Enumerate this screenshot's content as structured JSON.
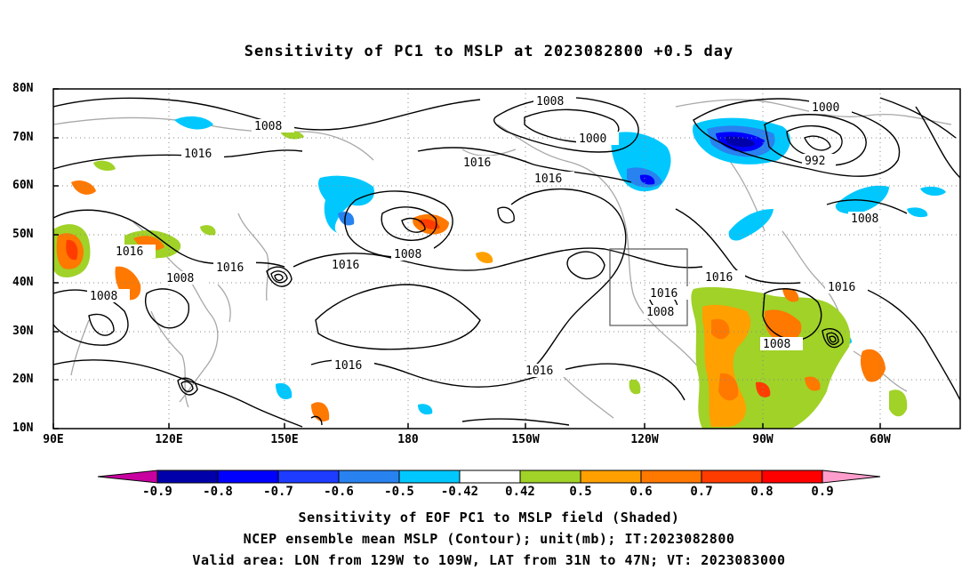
{
  "title": "Sensitivity of PC1 to MSLP at 2023082800 +0.5 day",
  "lat_ticks": [
    "80N",
    "70N",
    "60N",
    "50N",
    "40N",
    "30N",
    "20N",
    "10N"
  ],
  "lon_ticks": [
    "90E",
    "120E",
    "150E",
    "180",
    "150W",
    "120W",
    "90W",
    "60W"
  ],
  "contour_labels": [
    "1008",
    "1000",
    "1000",
    "1016",
    "1016",
    "992",
    "1008",
    "1016",
    "1008",
    "1016",
    "1016",
    "1008",
    "1016",
    "1016",
    "1008",
    "1016",
    "1016",
    "1008",
    "1016",
    "1016",
    "1008",
    "1008"
  ],
  "colorbar": {
    "labels": [
      "-0.9",
      "-0.8",
      "-0.7",
      "-0.6",
      "-0.5",
      "-0.42",
      "0.42",
      "0.5",
      "0.6",
      "0.7",
      "0.8",
      "0.9"
    ],
    "colors": [
      "#0000aa",
      "#0000ff",
      "#1e3cff",
      "#2882f0",
      "#00c8ff",
      "#ffffff",
      "#a0d228",
      "#ffa000",
      "#ff7800",
      "#ff3c00",
      "#ff0000"
    ],
    "low_arrow": "#c800a0",
    "high_arrow": "#ff9ecd"
  },
  "captions": [
    "Sensitivity of EOF PC1 to MSLP field (Shaded)",
    "NCEP ensemble mean MSLP (Contour); unit(mb); IT:2023082800",
    "Valid area: LON from 129W to 109W, LAT from 31N to 47N; VT: 2023083000"
  ]
}
